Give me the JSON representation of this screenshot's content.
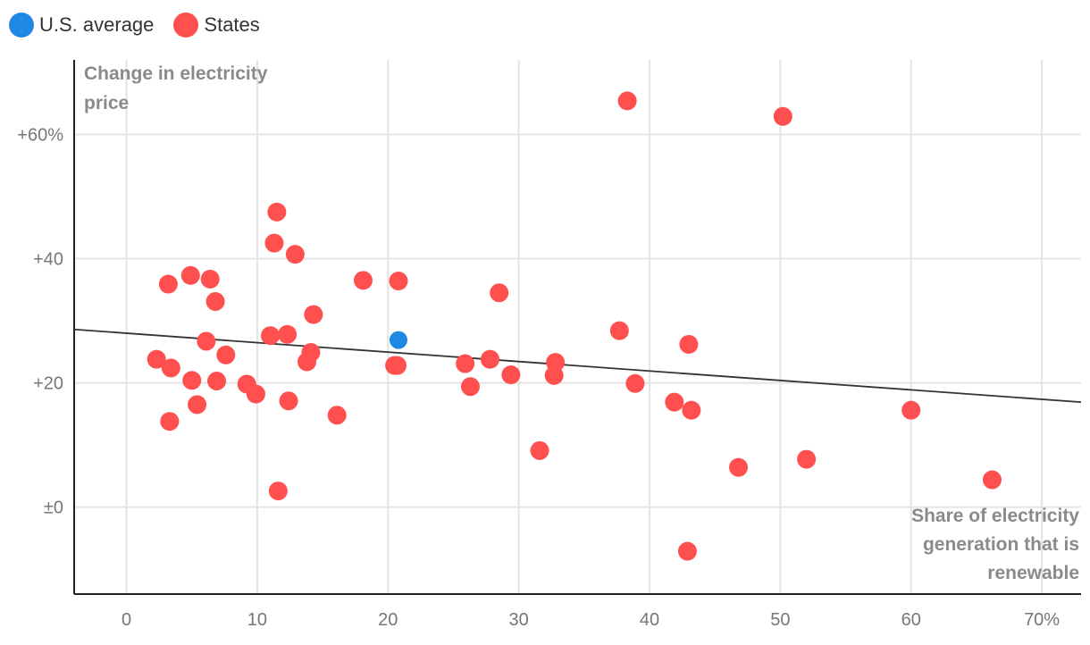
{
  "chart_data": {
    "type": "scatter",
    "legend": [
      {
        "label": "U.S. average",
        "color": "#1e88e5"
      },
      {
        "label": "States",
        "color": "#ff4f4f"
      }
    ],
    "ylabel_lines": [
      "Change in electricity",
      "price"
    ],
    "xlabel_lines": [
      "Share of electricity",
      "generation that is",
      "renewable"
    ],
    "xlim": [
      -4,
      73
    ],
    "ylim": [
      -14,
      72
    ],
    "x_ticks": [
      0,
      10,
      20,
      30,
      40,
      50,
      60,
      70
    ],
    "x_tick_labels": [
      "0",
      "10",
      "20",
      "30",
      "40",
      "50",
      "60",
      "70%"
    ],
    "y_ticks": [
      0,
      20,
      40,
      60
    ],
    "y_tick_labels": [
      "±0",
      "+20",
      "+40",
      "+60%"
    ],
    "trendline": {
      "x": [
        -4,
        73
      ],
      "y": [
        28.6,
        16.9
      ]
    },
    "series": [
      {
        "name": "U.S. average",
        "color": "#1e88e5",
        "points": [
          [
            20.8,
            26.9
          ]
        ]
      },
      {
        "name": "States",
        "color": "#ff4f4f",
        "points": [
          [
            38.3,
            65.4
          ],
          [
            50.2,
            62.9
          ],
          [
            11.5,
            47.5
          ],
          [
            11.3,
            42.5
          ],
          [
            12.9,
            40.7
          ],
          [
            3.2,
            35.9
          ],
          [
            4.9,
            37.3
          ],
          [
            6.4,
            36.7
          ],
          [
            6.8,
            33.1
          ],
          [
            18.1,
            36.5
          ],
          [
            20.8,
            36.4
          ],
          [
            28.5,
            34.5
          ],
          [
            14.3,
            31.0
          ],
          [
            11.0,
            27.6
          ],
          [
            12.3,
            27.8
          ],
          [
            6.1,
            26.7
          ],
          [
            7.6,
            24.5
          ],
          [
            14.1,
            24.9
          ],
          [
            13.8,
            23.4
          ],
          [
            2.3,
            23.8
          ],
          [
            3.4,
            22.4
          ],
          [
            5.0,
            20.4
          ],
          [
            6.9,
            20.3
          ],
          [
            9.2,
            19.8
          ],
          [
            9.9,
            18.2
          ],
          [
            5.4,
            16.5
          ],
          [
            3.3,
            13.8
          ],
          [
            12.4,
            17.1
          ],
          [
            16.1,
            14.8
          ],
          [
            20.5,
            22.8
          ],
          [
            20.7,
            22.8
          ],
          [
            25.9,
            23.1
          ],
          [
            27.8,
            23.8
          ],
          [
            26.3,
            19.4
          ],
          [
            29.4,
            21.3
          ],
          [
            32.7,
            21.2
          ],
          [
            32.8,
            23.3
          ],
          [
            37.7,
            28.4
          ],
          [
            38.9,
            19.9
          ],
          [
            43.0,
            26.2
          ],
          [
            41.9,
            16.9
          ],
          [
            43.2,
            15.6
          ],
          [
            31.6,
            9.1
          ],
          [
            46.8,
            6.4
          ],
          [
            52.0,
            7.7
          ],
          [
            60.0,
            15.6
          ],
          [
            66.2,
            4.4
          ],
          [
            11.6,
            2.6
          ],
          [
            42.9,
            -7.1
          ]
        ]
      }
    ]
  }
}
